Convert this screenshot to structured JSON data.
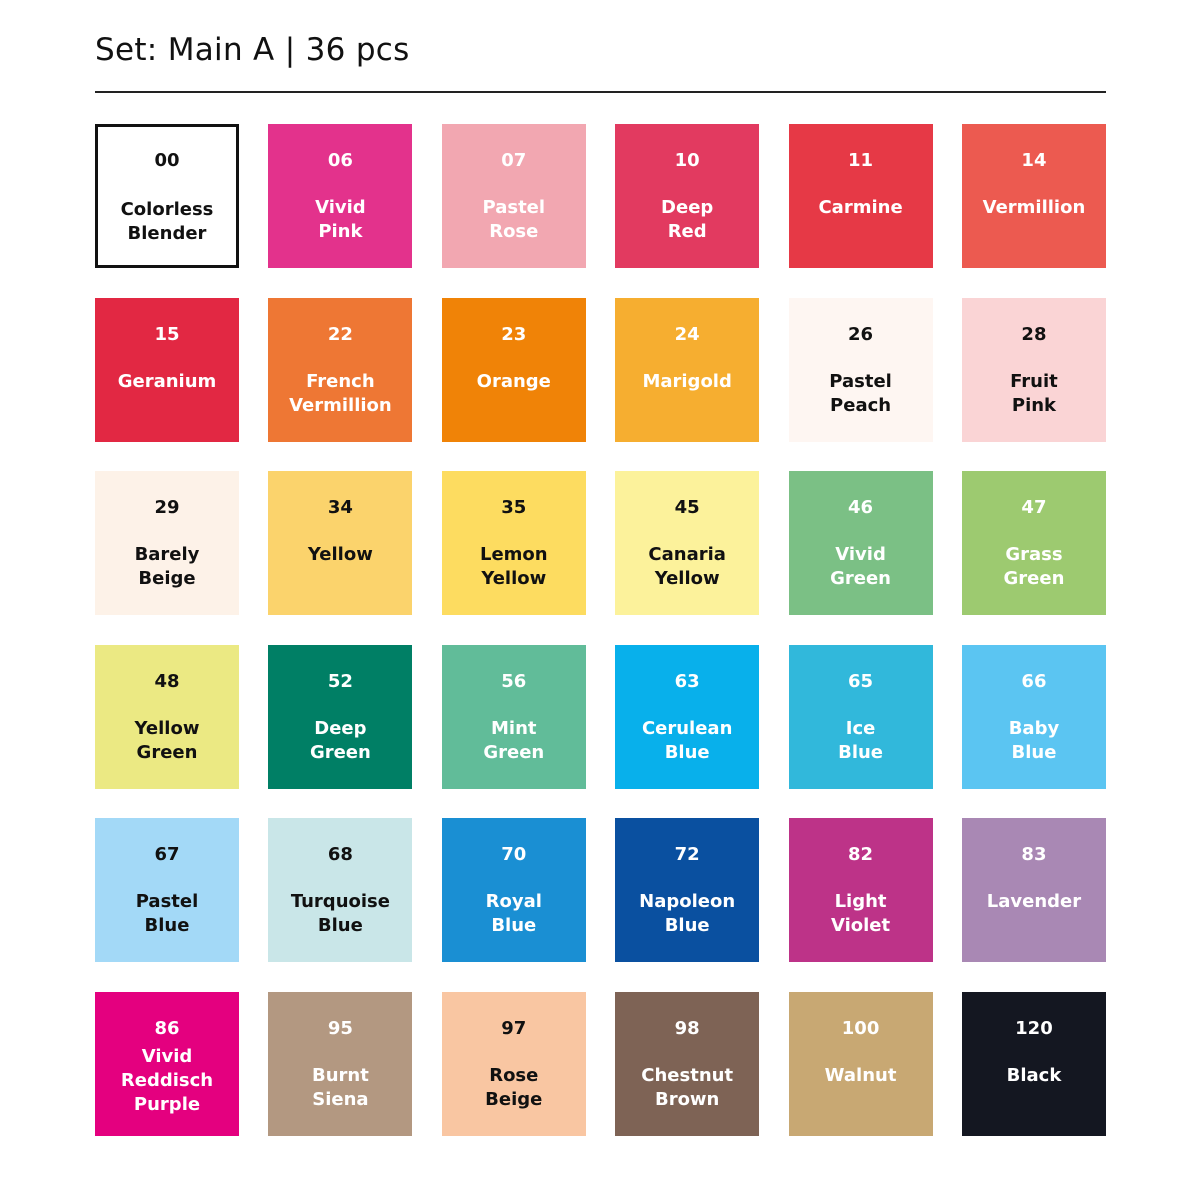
{
  "header": {
    "title": "Set: Main A | 36 pcs"
  },
  "swatches": [
    {
      "code": "00",
      "name": "Colorless\nBlender",
      "color": "#ffffff",
      "text": "#111111",
      "outlined": true
    },
    {
      "code": "06",
      "name": "Vivid\nPink",
      "color": "#e3328c",
      "text": "#ffffff"
    },
    {
      "code": "07",
      "name": "Pastel\nRose",
      "color": "#f2a7b1",
      "text": "#ffffff"
    },
    {
      "code": "10",
      "name": "Deep\nRed",
      "color": "#e23a60",
      "text": "#ffffff"
    },
    {
      "code": "11",
      "name": "Carmine",
      "color": "#e63946",
      "text": "#ffffff"
    },
    {
      "code": "14",
      "name": "Vermillion",
      "color": "#ec5a50",
      "text": "#ffffff"
    },
    {
      "code": "15",
      "name": "Geranium",
      "color": "#e22843",
      "text": "#ffffff"
    },
    {
      "code": "22",
      "name": "French\nVermillion",
      "color": "#ee7734",
      "text": "#ffffff"
    },
    {
      "code": "23",
      "name": "Orange",
      "color": "#f08307",
      "text": "#ffffff"
    },
    {
      "code": "24",
      "name": "Marigold",
      "color": "#f6ae30",
      "text": "#ffffff"
    },
    {
      "code": "26",
      "name": "Pastel\nPeach",
      "color": "#fef6f2",
      "text": "#111111"
    },
    {
      "code": "28",
      "name": "Fruit\nPink",
      "color": "#fad4d5",
      "text": "#111111"
    },
    {
      "code": "29",
      "name": "Barely\nBeige",
      "color": "#fdf2e8",
      "text": "#111111"
    },
    {
      "code": "34",
      "name": "Yellow",
      "color": "#fbd36c",
      "text": "#111111"
    },
    {
      "code": "35",
      "name": "Lemon\nYellow",
      "color": "#fddc60",
      "text": "#111111"
    },
    {
      "code": "45",
      "name": "Canaria\nYellow",
      "color": "#fcf29b",
      "text": "#111111"
    },
    {
      "code": "46",
      "name": "Vivid\nGreen",
      "color": "#7bc085",
      "text": "#ffffff"
    },
    {
      "code": "47",
      "name": "Grass\nGreen",
      "color": "#9dca70",
      "text": "#ffffff"
    },
    {
      "code": "48",
      "name": "Yellow\nGreen",
      "color": "#ebe983",
      "text": "#111111"
    },
    {
      "code": "52",
      "name": "Deep\nGreen",
      "color": "#007f65",
      "text": "#ffffff"
    },
    {
      "code": "56",
      "name": "Mint\nGreen",
      "color": "#61bc99",
      "text": "#ffffff"
    },
    {
      "code": "63",
      "name": "Cerulean\nBlue",
      "color": "#08b0eb",
      "text": "#ffffff"
    },
    {
      "code": "65",
      "name": "Ice\nBlue",
      "color": "#31b8db",
      "text": "#ffffff"
    },
    {
      "code": "66",
      "name": "Baby\nBlue",
      "color": "#5bc5f2",
      "text": "#ffffff"
    },
    {
      "code": "67",
      "name": "Pastel\nBlue",
      "color": "#a3d9f7",
      "text": "#111111"
    },
    {
      "code": "68",
      "name": "Turquoise\nBlue",
      "color": "#c9e6e8",
      "text": "#111111"
    },
    {
      "code": "70",
      "name": "Royal\nBlue",
      "color": "#1a8fd3",
      "text": "#ffffff"
    },
    {
      "code": "72",
      "name": "Napoleon\nBlue",
      "color": "#0a50a0",
      "text": "#ffffff"
    },
    {
      "code": "82",
      "name": "Light\nViolet",
      "color": "#bd3388",
      "text": "#ffffff"
    },
    {
      "code": "83",
      "name": "Lavender",
      "color": "#a988b4",
      "text": "#ffffff"
    },
    {
      "code": "86",
      "name": "Vivid\nReddisch\nPurple",
      "color": "#e4007f",
      "text": "#ffffff",
      "three": true
    },
    {
      "code": "95",
      "name": "Burnt\nSiena",
      "color": "#b39881",
      "text": "#ffffff"
    },
    {
      "code": "97",
      "name": "Rose\nBeige",
      "color": "#f9c6a2",
      "text": "#111111"
    },
    {
      "code": "98",
      "name": "Chestnut\nBrown",
      "color": "#7e6355",
      "text": "#ffffff"
    },
    {
      "code": "100",
      "name": "Walnut",
      "color": "#c8a873",
      "text": "#ffffff"
    },
    {
      "code": "120",
      "name": "Black",
      "color": "#141721",
      "text": "#ffffff"
    }
  ]
}
